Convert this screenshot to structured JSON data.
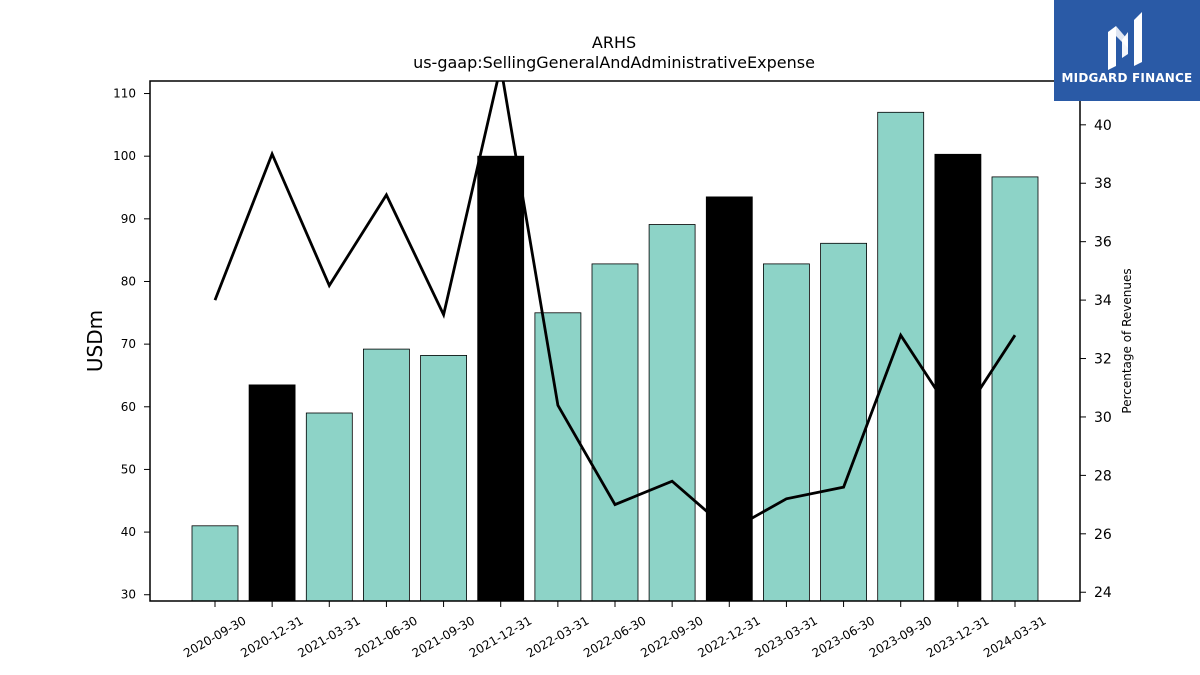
{
  "brand": {
    "name": "MIDGARD FINANCE",
    "logo_icon": "midgard-m-logo-icon",
    "bg_color": "#2a5aa6"
  },
  "chart_data": {
    "type": "bar",
    "title": "ARHS",
    "subtitle": "us-gaap:SellingGeneralAndAdministrativeExpense",
    "ylabel": "USDm",
    "y2label": "Percentage of Revenues",
    "categories": [
      "2020-09-30",
      "2020-12-31",
      "2021-03-31",
      "2021-06-30",
      "2021-09-30",
      "2021-12-31",
      "2022-03-31",
      "2022-06-30",
      "2022-09-30",
      "2022-12-31",
      "2023-03-31",
      "2023-06-30",
      "2023-09-30",
      "2023-12-31",
      "2024-03-31"
    ],
    "ylim": [
      29,
      112
    ],
    "y2lim": [
      23.7,
      41.5
    ],
    "yticks": [
      30,
      40,
      50,
      60,
      70,
      80,
      90,
      100,
      110
    ],
    "y2ticks": [
      24,
      26,
      28,
      30,
      32,
      34,
      36,
      38,
      40
    ],
    "series": [
      {
        "kind": "bar",
        "values": [
          41.0,
          63.5,
          59.0,
          69.2,
          68.2,
          100.0,
          75.0,
          82.8,
          89.1,
          93.5,
          82.8,
          86.1,
          107.0,
          100.3,
          96.7
        ],
        "colors": [
          "#8dd3c7",
          "#000000",
          "#8dd3c7",
          "#8dd3c7",
          "#8dd3c7",
          "#000000",
          "#8dd3c7",
          "#8dd3c7",
          "#8dd3c7",
          "#000000",
          "#8dd3c7",
          "#8dd3c7",
          "#8dd3c7",
          "#000000",
          "#8dd3c7"
        ]
      },
      {
        "kind": "line",
        "axis": "right",
        "color": "#000000",
        "values": [
          34.0,
          39.0,
          34.5,
          37.6,
          33.5,
          42.0,
          30.4,
          27.0,
          27.8,
          26.1,
          27.2,
          27.6,
          32.8,
          29.8,
          32.8
        ]
      }
    ],
    "grid": false,
    "legend": "none"
  }
}
